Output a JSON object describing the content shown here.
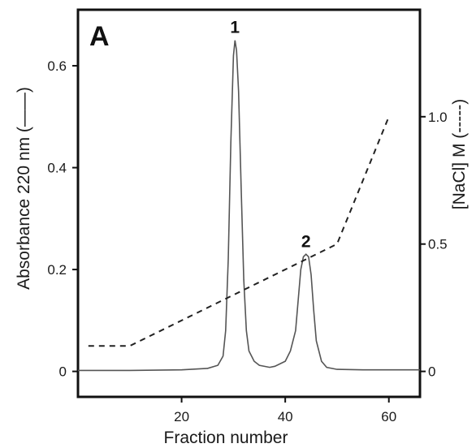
{
  "chart_data": {
    "type": "line",
    "panel_label": "A",
    "xlabel": "Fraction number",
    "ylabel_left": "Absorbance  220 nm (——)",
    "ylabel_right": "[NaCl] M (-----)",
    "xlim": [
      0,
      66
    ],
    "ylim_left": [
      -0.05,
      0.71
    ],
    "ylim_right": [
      -0.1,
      1.42
    ],
    "x_ticks": [
      20,
      40,
      60
    ],
    "y_ticks_left": [
      0,
      0.2,
      0.4,
      0.6
    ],
    "y_ticks_left_labels": [
      "0",
      "0.2",
      "0.4",
      "0.6"
    ],
    "y_ticks_right": [
      0,
      0.5,
      1.0
    ],
    "y_ticks_right_labels": [
      "0",
      "0.5",
      "1.0"
    ],
    "grid": false,
    "series": [
      {
        "style": "solid",
        "axis": "left",
        "x": [
          0,
          10,
          20,
          25,
          27,
          28,
          28.5,
          29,
          29.5,
          30,
          30.3,
          30.6,
          31,
          31.5,
          32,
          32.5,
          33,
          34,
          35,
          37,
          38,
          40,
          41,
          42,
          42.5,
          43,
          43.5,
          44,
          44.5,
          45,
          45.5,
          46,
          47,
          48,
          50,
          55,
          60,
          66
        ],
        "y": [
          0.002,
          0.002,
          0.003,
          0.006,
          0.012,
          0.03,
          0.08,
          0.22,
          0.45,
          0.62,
          0.65,
          0.63,
          0.55,
          0.36,
          0.18,
          0.08,
          0.04,
          0.02,
          0.012,
          0.008,
          0.01,
          0.02,
          0.04,
          0.08,
          0.14,
          0.2,
          0.225,
          0.23,
          0.225,
          0.19,
          0.12,
          0.06,
          0.02,
          0.008,
          0.004,
          0.003,
          0.003,
          0.003
        ]
      },
      {
        "style": "dashed",
        "axis": "right",
        "x": [
          2,
          10,
          50,
          60
        ],
        "y": [
          0.1,
          0.1,
          0.5,
          1.0
        ]
      }
    ],
    "annotations": [
      {
        "text": "1",
        "x": 30.3,
        "y": 0.65
      },
      {
        "text": "2",
        "x": 44,
        "y": 0.23
      }
    ]
  }
}
